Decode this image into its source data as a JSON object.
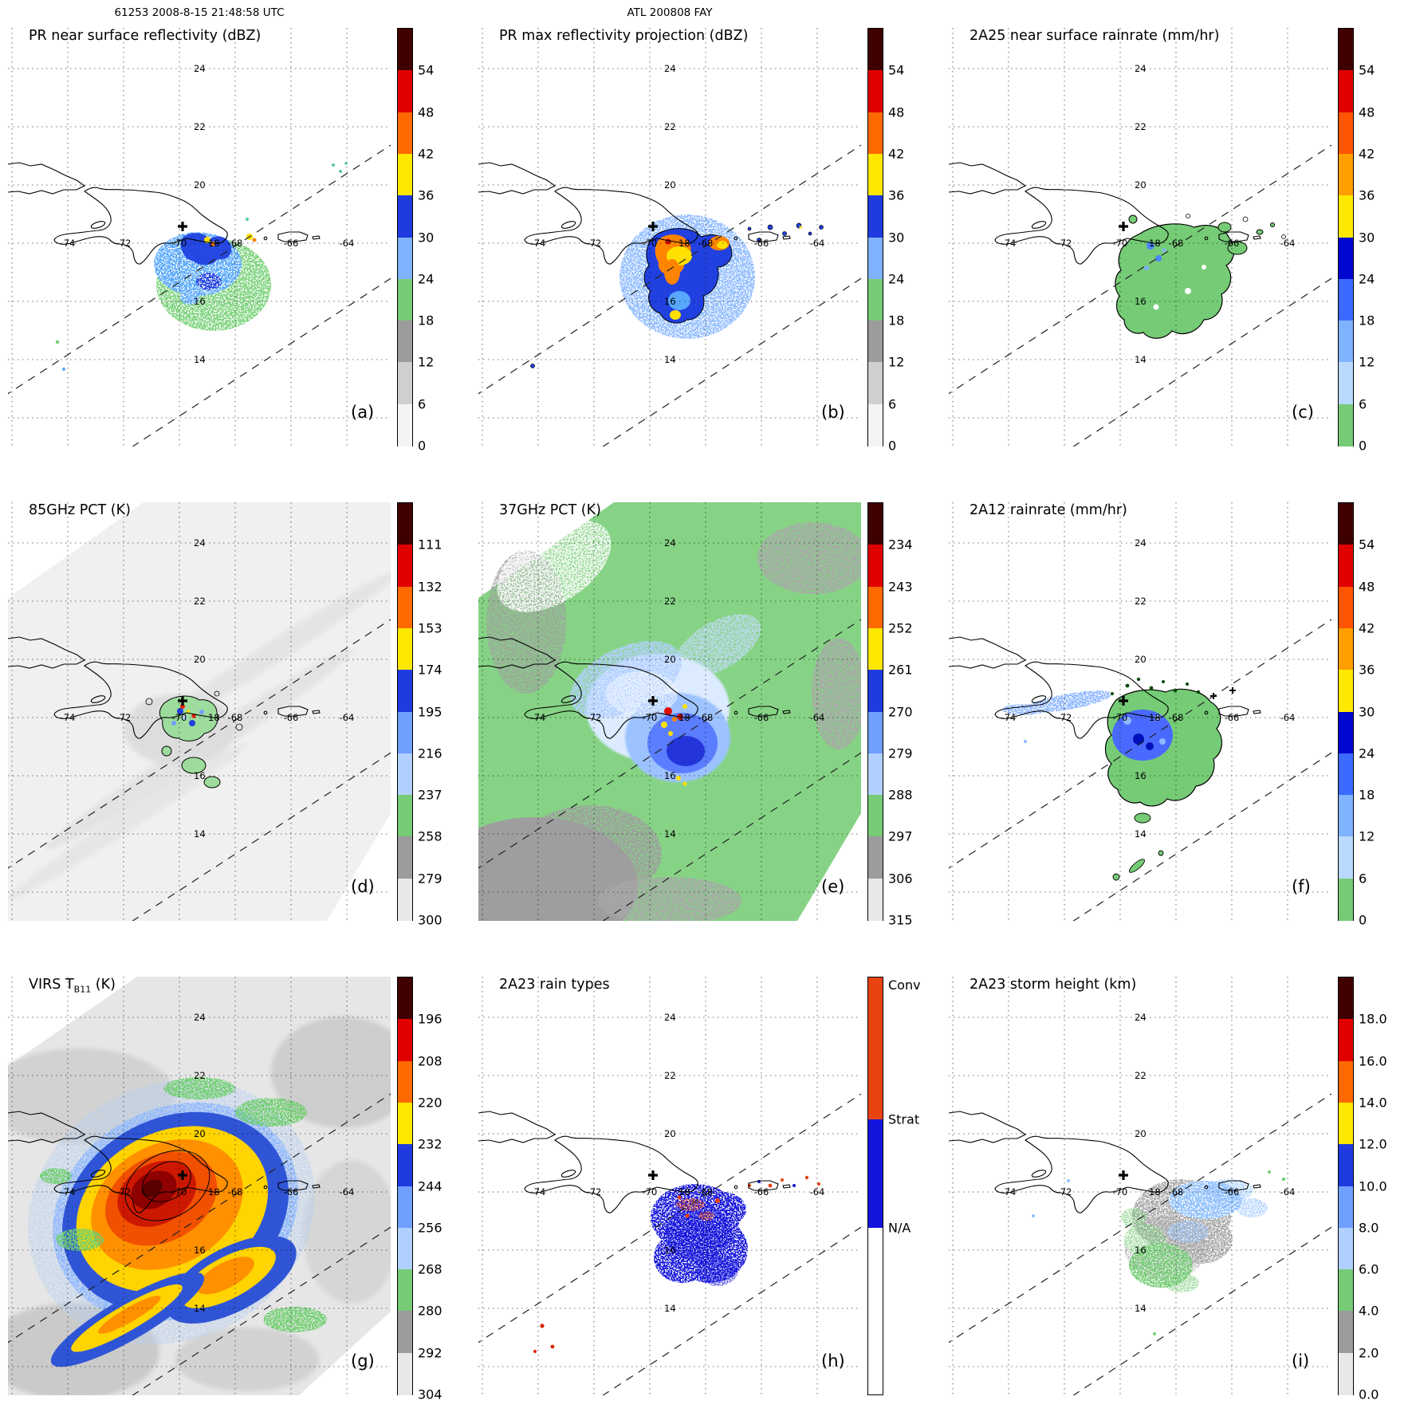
{
  "header": {
    "left": "61253 2008-8-15 21:48:58 UTC",
    "center": "ATL 200808 FAY"
  },
  "map_labels": {
    "lons": [
      "-74",
      "-72",
      "-70",
      "-68",
      "-66",
      "-64"
    ],
    "lats": [
      "24",
      "22",
      "20",
      "18",
      "16",
      "14"
    ]
  },
  "chart_data": {
    "type": "heatmap",
    "description": "3x3 grid of TRMM overpass maps of tropical storm Fay over Hispaniola, each panel a geographic map with dotted lat/lon grid, dashed radar swath edges, coastlines, storm-center cross marker and a vertical colorbar",
    "panels": [
      {
        "id": "a",
        "letter": "(a)",
        "title": "PR near surface reflectivity (dBZ)",
        "title_sub": "",
        "title_suffix": "",
        "colorbar": {
          "ticks": [
            "54",
            "48",
            "42",
            "36",
            "30",
            "24",
            "18",
            "12",
            "6",
            "0"
          ],
          "colors": [
            "#3f0000",
            "#e00000",
            "#ff6a00",
            "#ffe800",
            "#1f3bdf",
            "#7fb2ff",
            "#76cc76",
            "#9c9c9c",
            "#cfcfcf",
            "#f4f4f4"
          ]
        }
      },
      {
        "id": "b",
        "letter": "(b)",
        "title": "PR max reflectivity projection (dBZ)",
        "title_sub": "",
        "title_suffix": "",
        "colorbar": {
          "ticks": [
            "54",
            "48",
            "42",
            "36",
            "30",
            "24",
            "18",
            "12",
            "6",
            "0"
          ],
          "colors": [
            "#3f0000",
            "#e00000",
            "#ff6a00",
            "#ffe800",
            "#1f3bdf",
            "#7fb2ff",
            "#76cc76",
            "#9c9c9c",
            "#cfcfcf",
            "#f4f4f4"
          ]
        }
      },
      {
        "id": "c",
        "letter": "(c)",
        "title": "2A25 near surface rainrate (mm/hr)",
        "title_sub": "",
        "title_suffix": "",
        "colorbar": {
          "ticks": [
            "54",
            "48",
            "42",
            "36",
            "30",
            "24",
            "18",
            "12",
            "6",
            "0"
          ],
          "colors": [
            "#3f0000",
            "#e00000",
            "#ff5500",
            "#ff9e00",
            "#ffe800",
            "#0008cf",
            "#3a6aff",
            "#7fb2ff",
            "#b9d9ff",
            "#76cc76"
          ]
        }
      },
      {
        "id": "d",
        "letter": "(d)",
        "title": "85GHz PCT (K)",
        "title_sub": "",
        "title_suffix": "",
        "colorbar": {
          "ticks": [
            "111",
            "132",
            "153",
            "174",
            "195",
            "216",
            "237",
            "258",
            "279",
            "300"
          ],
          "colors": [
            "#3f0000",
            "#e00000",
            "#ff6a00",
            "#ffe800",
            "#1f3bdf",
            "#6f9fff",
            "#b0d0ff",
            "#76cc76",
            "#9c9c9c",
            "#e8e8e8"
          ]
        }
      },
      {
        "id": "e",
        "letter": "(e)",
        "title": "37GHz PCT (K)",
        "title_sub": "",
        "title_suffix": "",
        "colorbar": {
          "ticks": [
            "234",
            "243",
            "252",
            "261",
            "270",
            "279",
            "288",
            "297",
            "306",
            "315"
          ],
          "colors": [
            "#3f0000",
            "#e00000",
            "#ff6a00",
            "#ffe800",
            "#1f3bdf",
            "#6f9fff",
            "#b0d0ff",
            "#76cc76",
            "#9c9c9c",
            "#e8e8e8"
          ]
        }
      },
      {
        "id": "f",
        "letter": "(f)",
        "title": "2A12 rainrate (mm/hr)",
        "title_sub": "",
        "title_suffix": "",
        "colorbar": {
          "ticks": [
            "54",
            "48",
            "42",
            "36",
            "30",
            "24",
            "18",
            "12",
            "6",
            "0"
          ],
          "colors": [
            "#3f0000",
            "#e00000",
            "#ff5500",
            "#ff9e00",
            "#ffe800",
            "#0008cf",
            "#3a6aff",
            "#7fb2ff",
            "#b9d9ff",
            "#76cc76"
          ]
        }
      },
      {
        "id": "g",
        "letter": "(g)",
        "title": "VIRS T",
        "title_sub": "B11",
        "title_suffix": " (K)",
        "colorbar": {
          "ticks": [
            "196",
            "208",
            "220",
            "232",
            "244",
            "256",
            "268",
            "280",
            "292",
            "304"
          ],
          "colors": [
            "#3f0000",
            "#e00000",
            "#ff6a00",
            "#ffe800",
            "#1f3bdf",
            "#6f9fff",
            "#b0d0ff",
            "#76cc76",
            "#9c9c9c",
            "#e8e8e8"
          ]
        }
      },
      {
        "id": "h",
        "letter": "(h)",
        "title": "2A23 rain types",
        "title_sub": "",
        "title_suffix": "",
        "colorbar": {
          "segments": [
            {
              "label": "Conv",
              "color": "#e84310",
              "frac": 0.34
            },
            {
              "label": "Strat",
              "color": "#1414dc",
              "frac": 0.26
            },
            {
              "label": "N/A",
              "color": "#ffffff",
              "frac": 0.4
            }
          ]
        }
      },
      {
        "id": "i",
        "letter": "(i)",
        "title": "2A23 storm height (km)",
        "title_sub": "",
        "title_suffix": "",
        "colorbar": {
          "ticks": [
            "18.0",
            "16.0",
            "14.0",
            "12.0",
            "10.0",
            "8.0",
            "6.0",
            "4.0",
            "2.0",
            "0.0"
          ],
          "colors": [
            "#3f0000",
            "#e00000",
            "#ff6a00",
            "#ffe800",
            "#1f3bdf",
            "#6f9fff",
            "#b0d0ff",
            "#76cc76",
            "#9c9c9c",
            "#e8e8e8"
          ]
        }
      }
    ]
  }
}
